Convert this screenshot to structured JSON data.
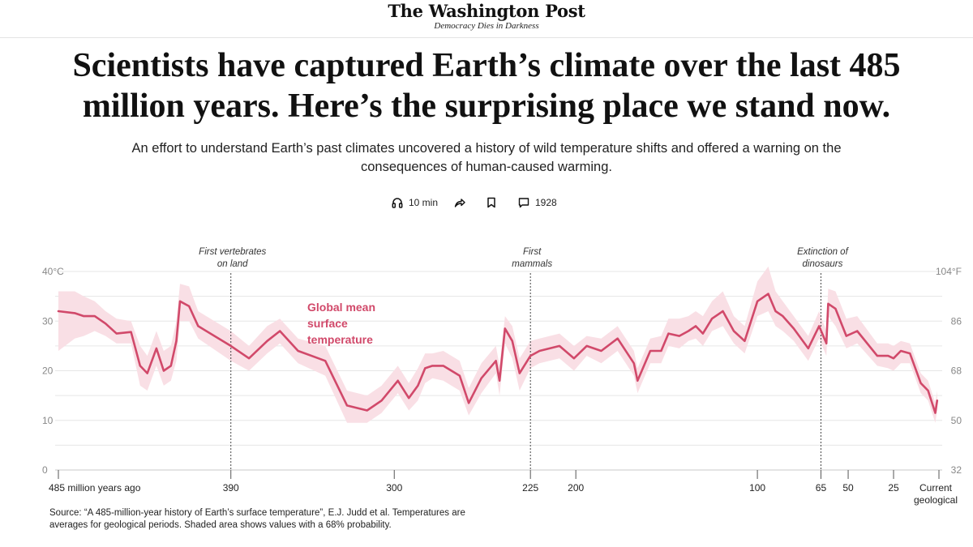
{
  "masthead": {
    "logo": "The Washington Post",
    "tagline": "Democracy Dies in Darkness"
  },
  "article": {
    "headline": "Scientists have captured Earth’s climate over the last 485 million years. Here’s the surprising place we stand now.",
    "dek": "An effort to understand Earth’s past climates uncovered a history of wild temperature shifts and offered a warning on the consequences of human-caused warming."
  },
  "actions": {
    "listen_label": "10 min",
    "comment_count": "1928"
  },
  "colors": {
    "series": "#d1496a",
    "band": "#f9dfe5",
    "grid": "#e6e6e6"
  },
  "chart_data": {
    "type": "line",
    "series_label": [
      "Global mean",
      "surface",
      "temperature"
    ],
    "ylabel_left_unit": "°C",
    "ylabel_right_unit": "°F",
    "ylim": [
      0,
      40
    ],
    "y_ticks_c": [
      "40°C",
      "30",
      "20",
      "10",
      "0"
    ],
    "y_ticks_c_values": [
      40,
      30,
      20,
      10,
      0
    ],
    "y_ticks_f": [
      "104°F",
      "86",
      "68",
      "50",
      "32"
    ],
    "y_ticks_f_values": [
      40,
      30,
      20,
      10,
      0
    ],
    "x_ticks": [
      {
        "label": "485 million years ago",
        "value": 485
      },
      {
        "label": "390",
        "value": 390
      },
      {
        "label": "300",
        "value": 300
      },
      {
        "label": "225",
        "value": 225
      },
      {
        "label": "200",
        "value": 200
      },
      {
        "label": "100",
        "value": 100
      },
      {
        "label": "65",
        "value": 65
      },
      {
        "label": "50",
        "value": 50
      },
      {
        "label": "25",
        "value": 25
      },
      {
        "label": "Current geological stage",
        "value": 0
      }
    ],
    "annotations": [
      {
        "lines": [
          "First vertebrates",
          "on land"
        ],
        "x": 390
      },
      {
        "lines": [
          "First",
          "mammals"
        ],
        "x": 225
      },
      {
        "lines": [
          "Extinction of",
          "dinosaurs"
        ],
        "x": 65
      }
    ],
    "x_unit": "million years ago",
    "points": [
      [
        485,
        32.0,
        24.0,
        36.0
      ],
      [
        476,
        31.6,
        26.5,
        36.0
      ],
      [
        471,
        31.0,
        27.0,
        35.0
      ],
      [
        465,
        31.0,
        28.0,
        34.0
      ],
      [
        459,
        29.5,
        27.0,
        32.0
      ],
      [
        453,
        27.5,
        25.5,
        30.5
      ],
      [
        445,
        27.8,
        25.5,
        30.0
      ],
      [
        440,
        21.0,
        17.0,
        25.0
      ],
      [
        436,
        19.5,
        16.0,
        23.0
      ],
      [
        431,
        24.5,
        21.0,
        28.0
      ],
      [
        427,
        20.0,
        17.0,
        24.0
      ],
      [
        423,
        21.0,
        18.0,
        25.0
      ],
      [
        420,
        26.0,
        22.0,
        30.0
      ],
      [
        418,
        34.0,
        30.0,
        37.5
      ],
      [
        413,
        33.0,
        30.0,
        37.0
      ],
      [
        408,
        29.0,
        26.5,
        32.0
      ],
      [
        390,
        25.0,
        22.0,
        28.0
      ],
      [
        380,
        22.5,
        20.0,
        25.0
      ],
      [
        370,
        26.0,
        23.5,
        29.0
      ],
      [
        363,
        28.0,
        25.5,
        30.5
      ],
      [
        353,
        24.0,
        21.5,
        26.5
      ],
      [
        338,
        22.0,
        19.0,
        25.0
      ],
      [
        326,
        13.0,
        9.5,
        16.0
      ],
      [
        315,
        12.0,
        9.5,
        15.0
      ],
      [
        307,
        14.0,
        11.5,
        17.0
      ],
      [
        298,
        18.0,
        15.5,
        21.0
      ],
      [
        292,
        14.5,
        12.0,
        17.5
      ],
      [
        287,
        17.0,
        14.0,
        20.5
      ],
      [
        283,
        20.5,
        17.5,
        23.5
      ],
      [
        279,
        21.0,
        18.5,
        23.5
      ],
      [
        273,
        21.0,
        18.0,
        24.0
      ],
      [
        264,
        19.0,
        16.0,
        22.0
      ],
      [
        259,
        13.5,
        11.0,
        16.5
      ],
      [
        252,
        18.5,
        15.5,
        21.5
      ],
      [
        244,
        22.0,
        19.5,
        25.0
      ],
      [
        242,
        18.0,
        15.0,
        21.0
      ],
      [
        239,
        28.5,
        25.5,
        31.0
      ],
      [
        235,
        26.0,
        22.5,
        29.0
      ],
      [
        231,
        19.5,
        16.0,
        22.5
      ],
      [
        225,
        23.0,
        20.5,
        26.0
      ],
      [
        220,
        24.0,
        21.5,
        26.5
      ],
      [
        209,
        25.0,
        22.5,
        27.5
      ],
      [
        201,
        22.5,
        20.0,
        25.0
      ],
      [
        194,
        25.0,
        23.0,
        27.0
      ],
      [
        186,
        24.0,
        21.5,
        26.5
      ],
      [
        177,
        26.5,
        24.0,
        29.0
      ],
      [
        168,
        21.5,
        19.0,
        24.0
      ],
      [
        166,
        18.0,
        15.5,
        20.5
      ],
      [
        159,
        24.0,
        21.5,
        26.5
      ],
      [
        153,
        24.0,
        21.5,
        27.0
      ],
      [
        149,
        27.5,
        25.0,
        30.5
      ],
      [
        143,
        27.0,
        24.5,
        30.5
      ],
      [
        138,
        28.0,
        26.0,
        31.0
      ],
      [
        134,
        29.0,
        26.5,
        32.0
      ],
      [
        130,
        27.5,
        25.0,
        31.0
      ],
      [
        125,
        30.5,
        28.0,
        34.0
      ],
      [
        119,
        32.0,
        29.0,
        36.0
      ],
      [
        113,
        28.0,
        25.5,
        31.0
      ],
      [
        107,
        26.0,
        23.5,
        29.0
      ],
      [
        100,
        34.0,
        31.0,
        38.0
      ],
      [
        94,
        35.5,
        32.0,
        41.0
      ],
      [
        90,
        32.0,
        29.0,
        36.0
      ],
      [
        86,
        31.0,
        28.0,
        34.0
      ],
      [
        80,
        28.5,
        26.0,
        31.0
      ],
      [
        72,
        24.5,
        22.0,
        27.0
      ],
      [
        66,
        29.0,
        26.5,
        32.0
      ],
      [
        62,
        25.5,
        23.0,
        28.0
      ],
      [
        61,
        33.5,
        31.0,
        36.5
      ],
      [
        57,
        32.5,
        29.0,
        36.0
      ],
      [
        51,
        27.0,
        24.5,
        30.5
      ],
      [
        45,
        28.0,
        25.5,
        31.0
      ],
      [
        34,
        23.0,
        21.0,
        25.5
      ],
      [
        28,
        23.0,
        20.5,
        25.5
      ],
      [
        25,
        22.5,
        20.0,
        25.0
      ],
      [
        21,
        24.0,
        21.5,
        26.0
      ],
      [
        16,
        23.5,
        21.5,
        25.5
      ],
      [
        10,
        17.5,
        15.5,
        19.5
      ],
      [
        6,
        16.0,
        14.0,
        18.0
      ],
      [
        2,
        11.5,
        9.5,
        13.5
      ],
      [
        1,
        14.0,
        12.0,
        16.0
      ]
    ],
    "source": "Source: “A 485-million-year history of Earth’s surface temperature”, E.J. Judd et al. Temperatures are averages for geological periods. Shaded area shows values with a 68% probability."
  }
}
